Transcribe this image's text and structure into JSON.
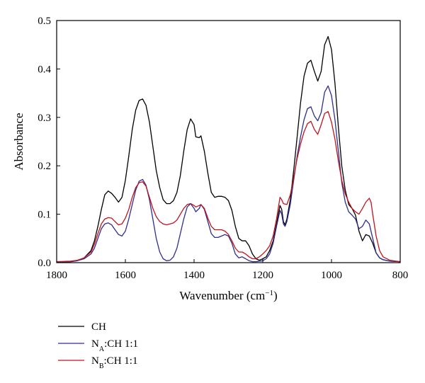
{
  "chart_data": {
    "type": "line",
    "title": "",
    "xlabel": "Wavenumber",
    "xlabel_unit_base": "cm",
    "xlabel_unit_sup": "−1",
    "ylabel": "Absorbance",
    "xlim": [
      1800,
      800
    ],
    "ylim": [
      0,
      0.5
    ],
    "x_reversed": true,
    "xticks": [
      1800,
      1600,
      1400,
      1200,
      1000,
      800
    ],
    "yticks": [
      0.0,
      0.1,
      0.2,
      0.3,
      0.4,
      0.5
    ],
    "xtick_labels": [
      "1800",
      "1600",
      "1400",
      "1200",
      "1000",
      "800"
    ],
    "ytick_labels": [
      "0.0",
      "0.1",
      "0.2",
      "0.3",
      "0.4",
      "0.5"
    ],
    "grid": false,
    "legend_position": "bottom-left, below plot",
    "series": [
      {
        "name": "CH",
        "legend_main": "CH",
        "legend_sub": "",
        "legend_suffix": "",
        "color": "#000000",
        "points": [
          [
            1800,
            0.002
          ],
          [
            1760,
            0.002
          ],
          [
            1740,
            0.004
          ],
          [
            1720,
            0.01
          ],
          [
            1700,
            0.025
          ],
          [
            1690,
            0.045
          ],
          [
            1680,
            0.075
          ],
          [
            1670,
            0.11
          ],
          [
            1660,
            0.14
          ],
          [
            1650,
            0.148
          ],
          [
            1640,
            0.143
          ],
          [
            1630,
            0.135
          ],
          [
            1620,
            0.125
          ],
          [
            1610,
            0.135
          ],
          [
            1600,
            0.17
          ],
          [
            1590,
            0.22
          ],
          [
            1580,
            0.275
          ],
          [
            1570,
            0.315
          ],
          [
            1560,
            0.335
          ],
          [
            1550,
            0.338
          ],
          [
            1540,
            0.325
          ],
          [
            1530,
            0.29
          ],
          [
            1520,
            0.24
          ],
          [
            1510,
            0.19
          ],
          [
            1500,
            0.155
          ],
          [
            1490,
            0.13
          ],
          [
            1480,
            0.122
          ],
          [
            1470,
            0.122
          ],
          [
            1460,
            0.128
          ],
          [
            1450,
            0.145
          ],
          [
            1440,
            0.18
          ],
          [
            1430,
            0.23
          ],
          [
            1420,
            0.275
          ],
          [
            1410,
            0.297
          ],
          [
            1400,
            0.285
          ],
          [
            1395,
            0.26
          ],
          [
            1385,
            0.258
          ],
          [
            1380,
            0.262
          ],
          [
            1370,
            0.23
          ],
          [
            1360,
            0.185
          ],
          [
            1350,
            0.145
          ],
          [
            1340,
            0.135
          ],
          [
            1330,
            0.137
          ],
          [
            1320,
            0.137
          ],
          [
            1310,
            0.135
          ],
          [
            1300,
            0.128
          ],
          [
            1290,
            0.108
          ],
          [
            1280,
            0.075
          ],
          [
            1270,
            0.05
          ],
          [
            1260,
            0.045
          ],
          [
            1250,
            0.045
          ],
          [
            1240,
            0.035
          ],
          [
            1230,
            0.018
          ],
          [
            1220,
            0.008
          ],
          [
            1210,
            0.005
          ],
          [
            1200,
            0.008
          ],
          [
            1190,
            0.012
          ],
          [
            1180,
            0.025
          ],
          [
            1170,
            0.045
          ],
          [
            1160,
            0.08
          ],
          [
            1150,
            0.118
          ],
          [
            1145,
            0.11
          ],
          [
            1140,
            0.085
          ],
          [
            1135,
            0.078
          ],
          [
            1130,
            0.09
          ],
          [
            1120,
            0.13
          ],
          [
            1110,
            0.19
          ],
          [
            1100,
            0.26
          ],
          [
            1090,
            0.33
          ],
          [
            1080,
            0.385
          ],
          [
            1070,
            0.412
          ],
          [
            1060,
            0.418
          ],
          [
            1050,
            0.395
          ],
          [
            1040,
            0.375
          ],
          [
            1030,
            0.395
          ],
          [
            1020,
            0.45
          ],
          [
            1010,
            0.467
          ],
          [
            1000,
            0.44
          ],
          [
            990,
            0.37
          ],
          [
            980,
            0.28
          ],
          [
            970,
            0.2
          ],
          [
            960,
            0.15
          ],
          [
            950,
            0.12
          ],
          [
            940,
            0.112
          ],
          [
            930,
            0.098
          ],
          [
            920,
            0.065
          ],
          [
            910,
            0.045
          ],
          [
            900,
            0.058
          ],
          [
            890,
            0.055
          ],
          [
            880,
            0.04
          ],
          [
            870,
            0.02
          ],
          [
            860,
            0.01
          ],
          [
            850,
            0.006
          ],
          [
            830,
            0.003
          ],
          [
            800,
            0.002
          ]
        ]
      },
      {
        "name": "N_A:CH 1:1",
        "legend_main": "N",
        "legend_sub": "A",
        "legend_suffix": ":CH 1:1",
        "color": "#2e2e8c",
        "points": [
          [
            1800,
            0.001
          ],
          [
            1760,
            0.002
          ],
          [
            1740,
            0.004
          ],
          [
            1720,
            0.008
          ],
          [
            1700,
            0.018
          ],
          [
            1690,
            0.03
          ],
          [
            1680,
            0.05
          ],
          [
            1670,
            0.07
          ],
          [
            1660,
            0.08
          ],
          [
            1650,
            0.082
          ],
          [
            1640,
            0.078
          ],
          [
            1630,
            0.068
          ],
          [
            1620,
            0.058
          ],
          [
            1610,
            0.055
          ],
          [
            1600,
            0.065
          ],
          [
            1590,
            0.09
          ],
          [
            1580,
            0.12
          ],
          [
            1570,
            0.15
          ],
          [
            1560,
            0.168
          ],
          [
            1550,
            0.172
          ],
          [
            1540,
            0.16
          ],
          [
            1530,
            0.13
          ],
          [
            1520,
            0.09
          ],
          [
            1510,
            0.05
          ],
          [
            1500,
            0.022
          ],
          [
            1490,
            0.008
          ],
          [
            1480,
            0.004
          ],
          [
            1470,
            0.005
          ],
          [
            1460,
            0.012
          ],
          [
            1450,
            0.03
          ],
          [
            1440,
            0.06
          ],
          [
            1430,
            0.09
          ],
          [
            1420,
            0.115
          ],
          [
            1410,
            0.122
          ],
          [
            1400,
            0.112
          ],
          [
            1395,
            0.105
          ],
          [
            1385,
            0.112
          ],
          [
            1380,
            0.12
          ],
          [
            1370,
            0.11
          ],
          [
            1360,
            0.085
          ],
          [
            1350,
            0.06
          ],
          [
            1340,
            0.052
          ],
          [
            1330,
            0.052
          ],
          [
            1320,
            0.055
          ],
          [
            1310,
            0.058
          ],
          [
            1300,
            0.055
          ],
          [
            1290,
            0.04
          ],
          [
            1280,
            0.018
          ],
          [
            1270,
            0.01
          ],
          [
            1260,
            0.012
          ],
          [
            1250,
            0.008
          ],
          [
            1240,
            0.004
          ],
          [
            1230,
            0.002
          ],
          [
            1220,
            0.002
          ],
          [
            1200,
            0.004
          ],
          [
            1190,
            0.008
          ],
          [
            1180,
            0.018
          ],
          [
            1170,
            0.04
          ],
          [
            1160,
            0.075
          ],
          [
            1150,
            0.108
          ],
          [
            1145,
            0.1
          ],
          [
            1140,
            0.08
          ],
          [
            1135,
            0.075
          ],
          [
            1130,
            0.085
          ],
          [
            1120,
            0.12
          ],
          [
            1110,
            0.17
          ],
          [
            1100,
            0.22
          ],
          [
            1090,
            0.26
          ],
          [
            1080,
            0.295
          ],
          [
            1070,
            0.318
          ],
          [
            1060,
            0.322
          ],
          [
            1050,
            0.303
          ],
          [
            1040,
            0.293
          ],
          [
            1030,
            0.31
          ],
          [
            1020,
            0.352
          ],
          [
            1010,
            0.365
          ],
          [
            1000,
            0.345
          ],
          [
            990,
            0.295
          ],
          [
            980,
            0.23
          ],
          [
            970,
            0.165
          ],
          [
            960,
            0.125
          ],
          [
            950,
            0.105
          ],
          [
            940,
            0.098
          ],
          [
            930,
            0.09
          ],
          [
            920,
            0.07
          ],
          [
            910,
            0.075
          ],
          [
            900,
            0.088
          ],
          [
            890,
            0.08
          ],
          [
            880,
            0.05
          ],
          [
            870,
            0.02
          ],
          [
            860,
            0.01
          ],
          [
            850,
            0.006
          ],
          [
            830,
            0.003
          ],
          [
            800,
            0.002
          ]
        ]
      },
      {
        "name": "N_B:CH 1:1",
        "legend_main": "N",
        "legend_sub": "B",
        "legend_suffix": ":CH 1:1",
        "color": "#c0141c",
        "points": [
          [
            1800,
            0.002
          ],
          [
            1760,
            0.003
          ],
          [
            1740,
            0.005
          ],
          [
            1720,
            0.01
          ],
          [
            1700,
            0.022
          ],
          [
            1690,
            0.038
          ],
          [
            1680,
            0.06
          ],
          [
            1670,
            0.08
          ],
          [
            1660,
            0.09
          ],
          [
            1650,
            0.093
          ],
          [
            1640,
            0.092
          ],
          [
            1630,
            0.085
          ],
          [
            1620,
            0.078
          ],
          [
            1610,
            0.08
          ],
          [
            1600,
            0.092
          ],
          [
            1590,
            0.11
          ],
          [
            1580,
            0.135
          ],
          [
            1570,
            0.155
          ],
          [
            1560,
            0.165
          ],
          [
            1550,
            0.167
          ],
          [
            1540,
            0.158
          ],
          [
            1530,
            0.135
          ],
          [
            1520,
            0.112
          ],
          [
            1510,
            0.095
          ],
          [
            1500,
            0.085
          ],
          [
            1490,
            0.08
          ],
          [
            1480,
            0.078
          ],
          [
            1470,
            0.08
          ],
          [
            1460,
            0.082
          ],
          [
            1450,
            0.088
          ],
          [
            1440,
            0.1
          ],
          [
            1430,
            0.112
          ],
          [
            1420,
            0.12
          ],
          [
            1410,
            0.122
          ],
          [
            1400,
            0.118
          ],
          [
            1395,
            0.115
          ],
          [
            1385,
            0.118
          ],
          [
            1380,
            0.12
          ],
          [
            1370,
            0.112
          ],
          [
            1360,
            0.092
          ],
          [
            1350,
            0.075
          ],
          [
            1340,
            0.068
          ],
          [
            1330,
            0.068
          ],
          [
            1320,
            0.068
          ],
          [
            1310,
            0.065
          ],
          [
            1300,
            0.058
          ],
          [
            1290,
            0.045
          ],
          [
            1280,
            0.03
          ],
          [
            1270,
            0.022
          ],
          [
            1260,
            0.022
          ],
          [
            1250,
            0.018
          ],
          [
            1240,
            0.012
          ],
          [
            1230,
            0.008
          ],
          [
            1220,
            0.008
          ],
          [
            1210,
            0.012
          ],
          [
            1200,
            0.018
          ],
          [
            1190,
            0.025
          ],
          [
            1180,
            0.035
          ],
          [
            1170,
            0.055
          ],
          [
            1160,
            0.09
          ],
          [
            1150,
            0.135
          ],
          [
            1145,
            0.13
          ],
          [
            1140,
            0.122
          ],
          [
            1130,
            0.12
          ],
          [
            1120,
            0.14
          ],
          [
            1110,
            0.175
          ],
          [
            1100,
            0.215
          ],
          [
            1090,
            0.245
          ],
          [
            1080,
            0.27
          ],
          [
            1070,
            0.287
          ],
          [
            1060,
            0.292
          ],
          [
            1050,
            0.275
          ],
          [
            1040,
            0.265
          ],
          [
            1030,
            0.285
          ],
          [
            1020,
            0.308
          ],
          [
            1010,
            0.312
          ],
          [
            1000,
            0.29
          ],
          [
            990,
            0.255
          ],
          [
            980,
            0.21
          ],
          [
            970,
            0.17
          ],
          [
            960,
            0.142
          ],
          [
            950,
            0.125
          ],
          [
            940,
            0.112
          ],
          [
            930,
            0.105
          ],
          [
            920,
            0.1
          ],
          [
            910,
            0.112
          ],
          [
            900,
            0.125
          ],
          [
            890,
            0.133
          ],
          [
            885,
            0.125
          ],
          [
            880,
            0.1
          ],
          [
            870,
            0.055
          ],
          [
            860,
            0.025
          ],
          [
            850,
            0.012
          ],
          [
            830,
            0.005
          ],
          [
            800,
            0.002
          ]
        ]
      }
    ]
  }
}
